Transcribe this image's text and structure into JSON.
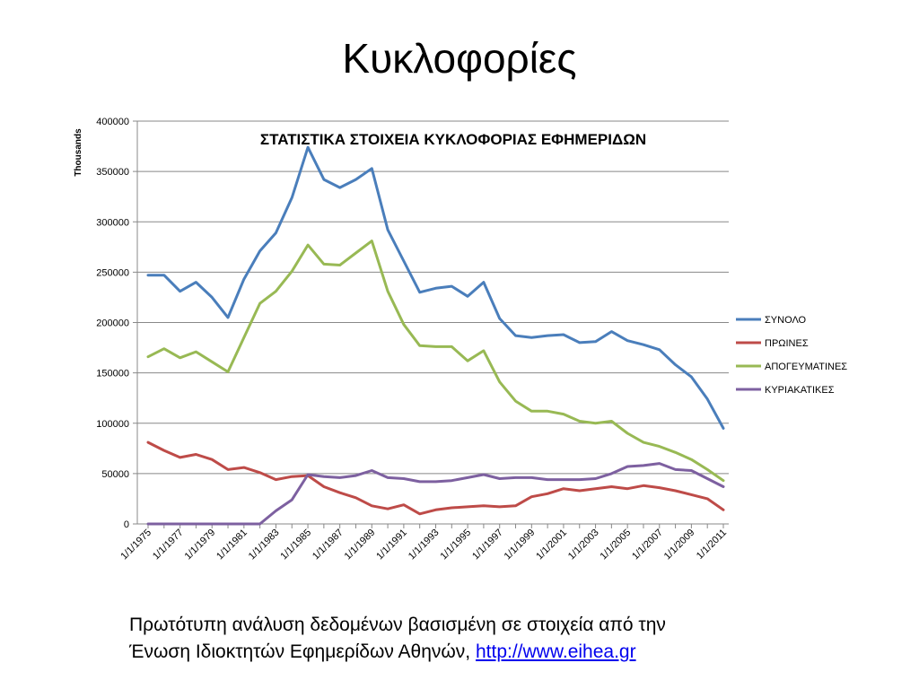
{
  "slide": {
    "title": "Κυκλοφορίες",
    "caption_line1": "Πρωτότυπη ανάλυση δεδομένων βασισμένη σε στοιχεία από την",
    "caption_line2": "Ένωση Ιδιοκτητών Εφημερίδων Αθηνών, ",
    "caption_link": "http://www.eihea.gr"
  },
  "chart_data": {
    "type": "line",
    "title": "ΣΤΑΤΙΣΤΙΚΑ ΣΤΟΙΧΕΙΑ ΚΥΚΛΟΦΟΡΙΑΣ ΕΦΗΜΕΡΙΔΩΝ",
    "ylabel": "Thousands",
    "xlabel": "",
    "ylim": [
      0,
      400000
    ],
    "yticks": [
      0,
      50000,
      100000,
      150000,
      200000,
      250000,
      300000,
      350000,
      400000
    ],
    "grid": true,
    "legend_position": "right",
    "x": [
      "1/1/1975",
      "1/1/1976",
      "1/1/1977",
      "1/1/1978",
      "1/1/1979",
      "1/1/1980",
      "1/1/1981",
      "1/1/1982",
      "1/1/1983",
      "1/1/1984",
      "1/1/1985",
      "1/1/1986",
      "1/1/1987",
      "1/1/1988",
      "1/1/1989",
      "1/1/1990",
      "1/1/1991",
      "1/1/1992",
      "1/1/1993",
      "1/1/1994",
      "1/1/1995",
      "1/1/1996",
      "1/1/1997",
      "1/1/1998",
      "1/1/1999",
      "1/1/2000",
      "1/1/2001",
      "1/1/2002",
      "1/1/2003",
      "1/1/2004",
      "1/1/2005",
      "1/1/2006",
      "1/1/2007",
      "1/1/2008",
      "1/1/2009",
      "1/1/2010",
      "1/1/2011"
    ],
    "x_tick_labels": [
      "1/1/1975",
      "1/1/1977",
      "1/1/1979",
      "1/1/1981",
      "1/1/1983",
      "1/1/1985",
      "1/1/1987",
      "1/1/1989",
      "1/1/1991",
      "1/1/1993",
      "1/1/1995",
      "1/1/1997",
      "1/1/1999",
      "1/1/2001",
      "1/1/2003",
      "1/1/2005",
      "1/1/2007",
      "1/1/2009",
      "1/1/2011"
    ],
    "series": [
      {
        "name": "ΣΥΝΟΛΟ",
        "color": "#4a7ebb",
        "values": [
          247000,
          247000,
          231000,
          240000,
          225000,
          205000,
          243000,
          271000,
          289000,
          324000,
          374000,
          342000,
          334000,
          342000,
          353000,
          292000,
          261000,
          230000,
          234000,
          236000,
          226000,
          240000,
          204000,
          187000,
          185000,
          187000,
          188000,
          180000,
          181000,
          191000,
          182000,
          178000,
          173000,
          158000,
          146000,
          124000,
          95000
        ]
      },
      {
        "name": "ΠΡΩΙΝΕΣ",
        "color": "#be4b48",
        "values": [
          81000,
          73000,
          66000,
          69000,
          64000,
          54000,
          56000,
          51000,
          44000,
          47000,
          48000,
          37000,
          31000,
          26000,
          18000,
          15000,
          19000,
          10000,
          14000,
          16000,
          17000,
          18000,
          17000,
          18000,
          27000,
          30000,
          35000,
          33000,
          35000,
          37000,
          35000,
          38000,
          36000,
          33000,
          29000,
          25000,
          14000
        ]
      },
      {
        "name": "ΑΠΟΓΕΥΜΑΤΙΝΕΣ",
        "color": "#98b954",
        "values": [
          166000,
          174000,
          165000,
          171000,
          161000,
          151000,
          185000,
          219000,
          231000,
          251000,
          277000,
          258000,
          257000,
          269000,
          281000,
          231000,
          198000,
          177000,
          176000,
          176000,
          162000,
          172000,
          141000,
          122000,
          112000,
          112000,
          109000,
          102000,
          100000,
          102000,
          90000,
          81000,
          77000,
          71000,
          64000,
          54000,
          43000
        ]
      },
      {
        "name": "ΚΥΡΙΑΚΑΤΙΚΕΣ",
        "color": "#7d60a0",
        "values": [
          0,
          0,
          0,
          0,
          0,
          0,
          0,
          0,
          13000,
          24000,
          49000,
          47000,
          46000,
          48000,
          53000,
          46000,
          45000,
          42000,
          42000,
          43000,
          46000,
          49000,
          45000,
          46000,
          46000,
          44000,
          44000,
          44000,
          45000,
          50000,
          57000,
          58000,
          60000,
          54000,
          53000,
          45000,
          37000
        ]
      }
    ]
  }
}
